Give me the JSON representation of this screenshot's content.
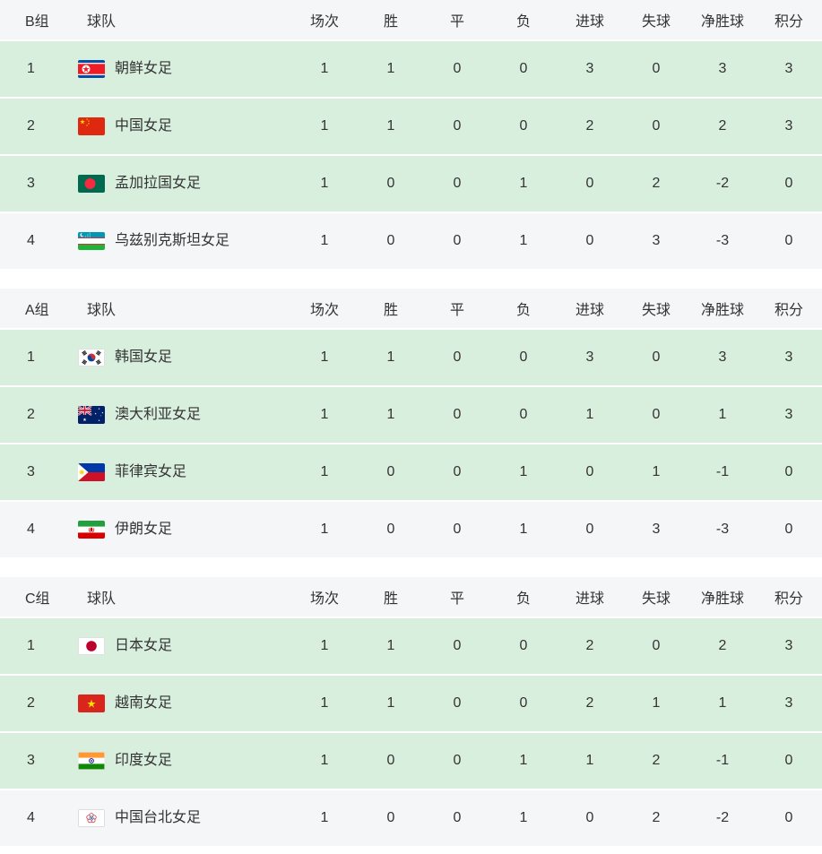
{
  "columns": {
    "team": "球队",
    "stats": [
      "场次",
      "胜",
      "平",
      "负",
      "进球",
      "失球",
      "净胜球",
      "积分"
    ]
  },
  "colors": {
    "highlight_row_bg": "#d9efde",
    "normal_row_bg": "#f5f6f7",
    "header_bg": "#f5f6f7",
    "row_separator": "#ffffff",
    "text": "#333333"
  },
  "groups": [
    {
      "label": "B组",
      "teams": [
        {
          "rank": 1,
          "name": "朝鲜女足",
          "flag": "kp",
          "flag_name": "north-korea-flag",
          "stats": [
            1,
            1,
            0,
            0,
            3,
            0,
            3,
            3
          ],
          "highlight": true
        },
        {
          "rank": 2,
          "name": "中国女足",
          "flag": "cn",
          "flag_name": "china-flag",
          "stats": [
            1,
            1,
            0,
            0,
            2,
            0,
            2,
            3
          ],
          "highlight": true
        },
        {
          "rank": 3,
          "name": "孟加拉国女足",
          "flag": "bd",
          "flag_name": "bangladesh-flag",
          "stats": [
            1,
            0,
            0,
            1,
            0,
            2,
            -2,
            0
          ],
          "highlight": true
        },
        {
          "rank": 4,
          "name": "乌兹别克斯坦女足",
          "flag": "uz",
          "flag_name": "uzbekistan-flag",
          "stats": [
            1,
            0,
            0,
            1,
            0,
            3,
            -3,
            0
          ],
          "highlight": false
        }
      ]
    },
    {
      "label": "A组",
      "teams": [
        {
          "rank": 1,
          "name": "韩国女足",
          "flag": "kr",
          "flag_name": "south-korea-flag",
          "stats": [
            1,
            1,
            0,
            0,
            3,
            0,
            3,
            3
          ],
          "highlight": true
        },
        {
          "rank": 2,
          "name": "澳大利亚女足",
          "flag": "au",
          "flag_name": "australia-flag",
          "stats": [
            1,
            1,
            0,
            0,
            1,
            0,
            1,
            3
          ],
          "highlight": true
        },
        {
          "rank": 3,
          "name": "菲律宾女足",
          "flag": "ph",
          "flag_name": "philippines-flag",
          "stats": [
            1,
            0,
            0,
            1,
            0,
            1,
            -1,
            0
          ],
          "highlight": true
        },
        {
          "rank": 4,
          "name": "伊朗女足",
          "flag": "ir",
          "flag_name": "iran-flag",
          "stats": [
            1,
            0,
            0,
            1,
            0,
            3,
            -3,
            0
          ],
          "highlight": false
        }
      ]
    },
    {
      "label": "C组",
      "teams": [
        {
          "rank": 1,
          "name": "日本女足",
          "flag": "jp",
          "flag_name": "japan-flag",
          "stats": [
            1,
            1,
            0,
            0,
            2,
            0,
            2,
            3
          ],
          "highlight": true
        },
        {
          "rank": 2,
          "name": "越南女足",
          "flag": "vn",
          "flag_name": "vietnam-flag",
          "stats": [
            1,
            1,
            0,
            0,
            2,
            1,
            1,
            3
          ],
          "highlight": true
        },
        {
          "rank": 3,
          "name": "印度女足",
          "flag": "in",
          "flag_name": "india-flag",
          "stats": [
            1,
            0,
            0,
            1,
            1,
            2,
            -1,
            0
          ],
          "highlight": true
        },
        {
          "rank": 4,
          "name": "中国台北女足",
          "flag": "tw",
          "flag_name": "chinese-taipei-flag",
          "stats": [
            1,
            0,
            0,
            1,
            0,
            2,
            -2,
            0
          ],
          "highlight": false
        }
      ]
    }
  ]
}
